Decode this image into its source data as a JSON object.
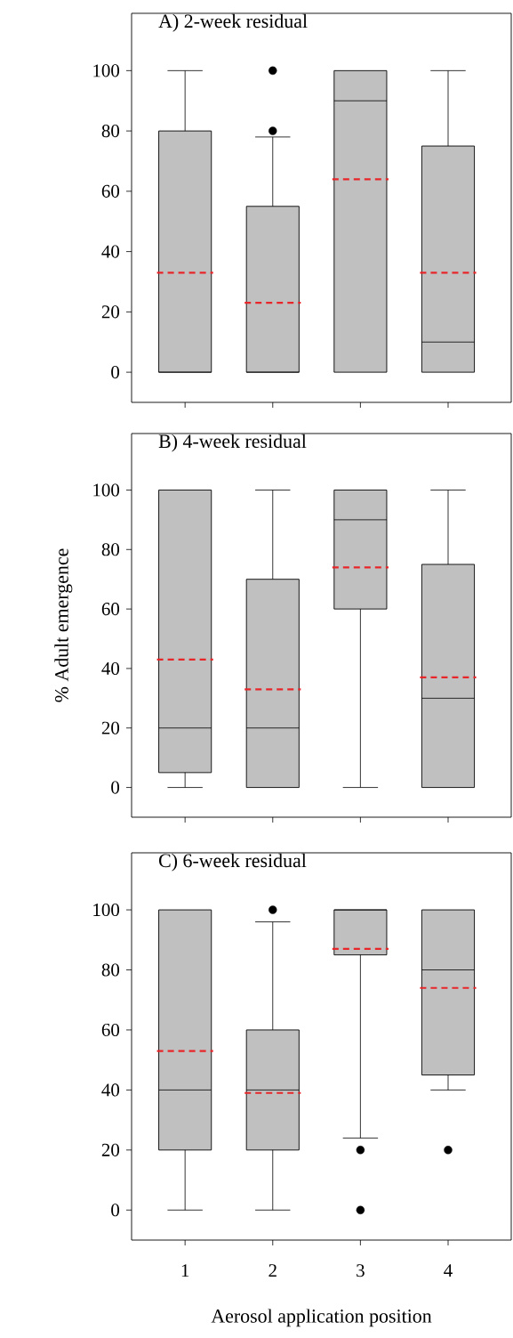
{
  "chart_data": [
    {
      "type": "box",
      "title": "A) 2-week residual",
      "categories": [
        "1",
        "2",
        "3",
        "4"
      ],
      "color": "#c0c0c0",
      "ylim": [
        -10,
        119
      ],
      "yticks": [
        0,
        20,
        40,
        60,
        80,
        100
      ],
      "tick_labels": "y",
      "boxes": [
        {
          "low": 0,
          "q1": 0,
          "median": 0,
          "q3": 80,
          "high": 100,
          "mean": 33
        },
        {
          "low": 0,
          "q1": 0,
          "median": 0,
          "q3": 55,
          "high": 78,
          "mean": 23,
          "outliers": [
            80,
            100
          ]
        },
        {
          "low": 0,
          "q1": 0,
          "median": 90,
          "q3": 100,
          "high": 100,
          "mean": 64
        },
        {
          "low": 0,
          "q1": 0,
          "median": 10,
          "q3": 75,
          "high": 100,
          "mean": 33
        }
      ]
    },
    {
      "type": "box",
      "title": "B) 4-week residual",
      "ylabel": "% Adult emergence",
      "categories": [
        "1",
        "2",
        "3",
        "4"
      ],
      "color": "#c0c0c0",
      "ylim": [
        -10,
        119
      ],
      "yticks": [
        0,
        20,
        40,
        60,
        80,
        100
      ],
      "tick_labels": "y",
      "boxes": [
        {
          "low": 0,
          "q1": 5,
          "median": 20,
          "q3": 100,
          "high": 100,
          "mean": 43
        },
        {
          "low": 0,
          "q1": 0,
          "median": 20,
          "q3": 70,
          "high": 100,
          "mean": 33
        },
        {
          "low": 0,
          "q1": 60,
          "median": 90,
          "q3": 100,
          "high": 100,
          "mean": 74
        },
        {
          "low": 0,
          "q1": 0,
          "median": 30,
          "q3": 75,
          "high": 100,
          "mean": 37
        }
      ]
    },
    {
      "type": "box",
      "title": "C) 6-week residual",
      "xlabel": "Aerosol application position",
      "categories": [
        "1",
        "2",
        "3",
        "4"
      ],
      "color": "#c0c0c0",
      "ylim": [
        -10,
        119
      ],
      "yticks": [
        0,
        20,
        40,
        60,
        80,
        100
      ],
      "boxes": [
        {
          "low": 0,
          "q1": 20,
          "median": 40,
          "q3": 100,
          "high": 100,
          "mean": 53
        },
        {
          "low": 0,
          "q1": 20,
          "median": 40,
          "q3": 60,
          "high": 96,
          "mean": 39,
          "outliers": [
            100
          ]
        },
        {
          "low": 24,
          "q1": 85,
          "median": 100,
          "q3": 100,
          "high": 100,
          "mean": 87,
          "outliers": [
            20,
            0
          ]
        },
        {
          "low": 40,
          "q1": 45,
          "median": 80,
          "q3": 100,
          "high": 100,
          "mean": 74,
          "outliers": [
            20
          ]
        }
      ]
    }
  ]
}
